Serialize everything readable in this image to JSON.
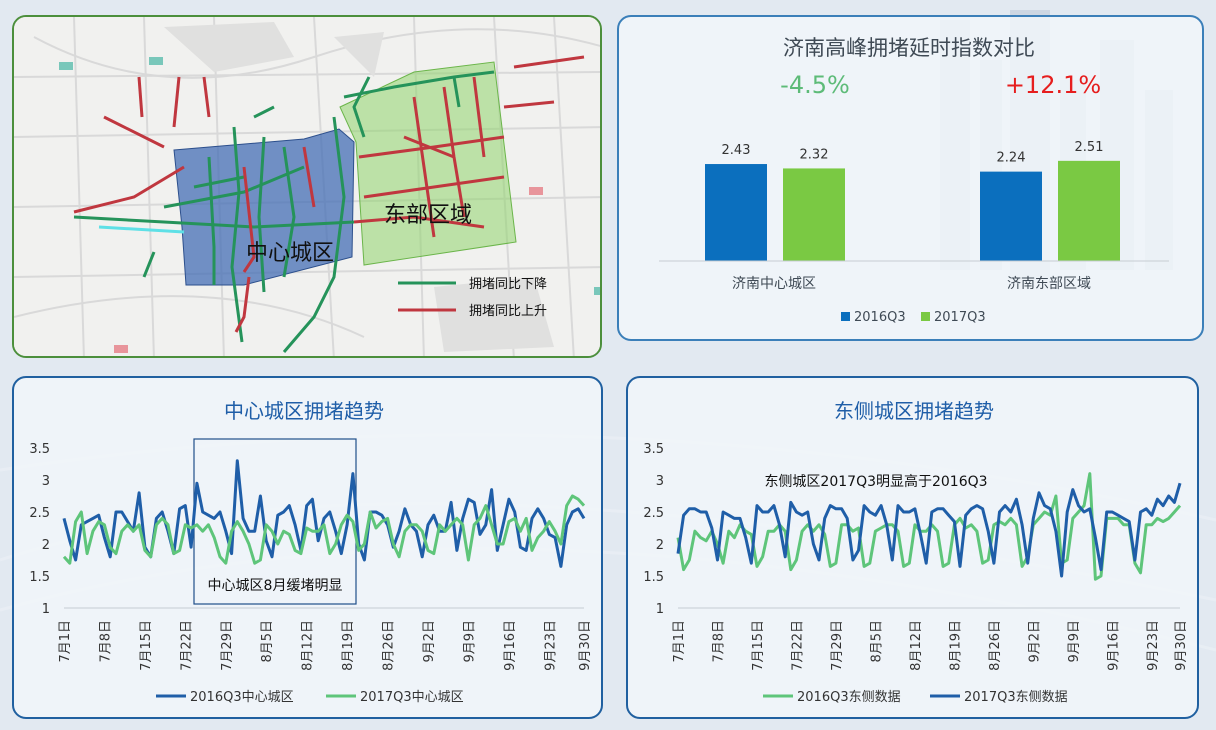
{
  "colors": {
    "blue": "#1f5ea8",
    "green": "#5ec57a",
    "bar_blue": "#0b6fbe",
    "bar_green": "#7ac943",
    "neg": "#5dbb78",
    "pos": "#e61e1e",
    "map_green": "#25935a",
    "map_red": "#c0373f"
  },
  "map": {
    "center_label": "中心城区",
    "east_label": "东部区域",
    "legend_down": "拥堵同比下降",
    "legend_up": "拥堵同比上升"
  },
  "bar_chart": {
    "title": "济南高峰拥堵延时指数对比",
    "groups": [
      {
        "name": "济南中心城区",
        "change": "-4.5%",
        "v2016": 2.43,
        "v2017": 2.32,
        "l2016": "2.43",
        "l2017": "2.32"
      },
      {
        "name": "济南东部区域",
        "change": "+12.1%",
        "v2016": 2.24,
        "v2017": 2.51,
        "l2016": "2.24",
        "l2017": "2.51"
      }
    ],
    "legend": [
      "2016Q3",
      "2017Q3"
    ]
  },
  "trend1": {
    "title": "中心城区拥堵趋势",
    "annotation": "中心城区8月缓堵明显",
    "legend": [
      "2016Q3中心城区",
      "2017Q3中心城区"
    ]
  },
  "trend2": {
    "title": "东侧城区拥堵趋势",
    "annotation": "东侧城区2017Q3明显高于2016Q3",
    "legend": [
      "2016Q3东侧数据",
      "2017Q3东侧数据"
    ]
  },
  "chart_data": [
    {
      "type": "bar",
      "title": "济南高峰拥堵延时指数对比",
      "categories": [
        "济南中心城区",
        "济南东部区域"
      ],
      "series": [
        {
          "name": "2016Q3",
          "values": [
            2.43,
            2.24
          ]
        },
        {
          "name": "2017Q3",
          "values": [
            2.32,
            2.51
          ]
        }
      ],
      "annotations": [
        "-4.5%",
        "+12.1%"
      ],
      "legend_position": "bottom"
    },
    {
      "type": "line",
      "title": "中心城区拥堵趋势",
      "ylim": [
        1,
        3.5
      ],
      "yticks": [
        "1",
        "1.5",
        "2",
        "2.5",
        "3",
        "3.5"
      ],
      "x_ticks": [
        "7月1日",
        "7月8日",
        "7月15日",
        "7月22日",
        "7月29日",
        "8月5日",
        "8月12日",
        "8月19日",
        "8月26日",
        "9月2日",
        "9月9日",
        "9月16日",
        "9月23日",
        "9月30日"
      ],
      "series": [
        {
          "name": "2016Q3中心城区",
          "values": [
            2.4,
            2.05,
            1.75,
            2.3,
            2.35,
            2.4,
            2.45,
            2.1,
            1.8,
            2.5,
            2.5,
            2.35,
            2.2,
            2.8,
            1.95,
            1.8,
            2.4,
            2.5,
            2.2,
            1.85,
            2.55,
            2.6,
            1.95,
            2.95,
            2.5,
            2.45,
            2.4,
            2.5,
            2.2,
            1.85,
            3.3,
            2.4,
            2.2,
            2.2,
            2.75,
            2.05,
            1.8,
            2.45,
            2.5,
            2.6,
            2.3,
            1.9,
            2.6,
            2.7,
            2.05,
            2.4,
            2.5,
            2.2,
            1.85,
            2.3,
            3.1,
            2.0,
            1.75,
            2.5,
            2.5,
            2.45,
            2.3,
            1.95,
            2.2,
            2.55,
            2.3,
            2.2,
            1.8,
            2.3,
            2.45,
            2.2,
            2.2,
            2.65,
            1.9,
            2.4,
            2.7,
            2.65,
            2.15,
            2.3,
            2.85,
            1.9,
            2.3,
            2.7,
            2.5,
            1.95,
            1.9,
            2.4,
            2.55,
            2.4,
            2.15,
            2.1,
            1.65,
            2.3,
            2.5,
            2.55,
            2.4
          ]
        },
        {
          "name": "2017Q3中心城区",
          "values": [
            1.8,
            1.7,
            2.35,
            2.5,
            1.85,
            2.2,
            2.35,
            2.3,
            1.95,
            1.85,
            2.2,
            2.3,
            2.2,
            2.3,
            1.9,
            1.8,
            2.3,
            2.4,
            2.3,
            1.85,
            1.9,
            2.3,
            2.25,
            2.3,
            2.2,
            2.3,
            2.1,
            1.8,
            1.7,
            2.2,
            2.35,
            2.2,
            2.0,
            1.7,
            1.75,
            2.3,
            2.2,
            2.0,
            2.2,
            2.15,
            1.9,
            1.85,
            2.25,
            2.2,
            2.2,
            2.3,
            1.85,
            2.0,
            2.3,
            2.45,
            2.35,
            1.9,
            2.0,
            2.5,
            2.25,
            2.35,
            2.4,
            2.0,
            1.8,
            2.2,
            2.3,
            2.3,
            2.2,
            1.9,
            1.85,
            2.3,
            2.2,
            2.3,
            2.4,
            2.3,
            1.75,
            2.3,
            2.4,
            2.6,
            2.3,
            2.0,
            2.0,
            2.35,
            2.4,
            2.2,
            2.4,
            1.9,
            2.1,
            2.2,
            2.35,
            2.2,
            2.0,
            2.6,
            2.75,
            2.7,
            2.6
          ]
        }
      ]
    },
    {
      "type": "line",
      "title": "东侧城区拥堵趋势",
      "ylim": [
        1,
        3.5
      ],
      "yticks": [
        "1",
        "1.5",
        "2",
        "2.5",
        "3",
        "3.5"
      ],
      "x_ticks": [
        "7月1日",
        "7月8日",
        "7月15日",
        "7月22日",
        "7月29日",
        "8月5日",
        "8月12日",
        "8月19日",
        "8月26日",
        "9月2日",
        "9月9日",
        "9月16日",
        "9月23日",
        "9月30日"
      ],
      "series": [
        {
          "name": "2016Q3东侧数据",
          "values": [
            2.1,
            1.6,
            1.75,
            2.2,
            2.1,
            2.05,
            2.2,
            2.0,
            1.7,
            2.2,
            2.1,
            2.3,
            2.2,
            2.15,
            1.65,
            1.8,
            2.2,
            2.2,
            2.3,
            2.2,
            1.6,
            1.75,
            2.2,
            2.3,
            2.2,
            2.3,
            2.15,
            1.65,
            1.7,
            2.3,
            2.3,
            2.2,
            2.25,
            1.65,
            1.7,
            2.2,
            2.25,
            2.3,
            2.3,
            2.2,
            1.65,
            1.7,
            2.3,
            2.2,
            2.2,
            2.3,
            2.2,
            1.65,
            1.7,
            2.3,
            2.4,
            2.25,
            2.3,
            2.2,
            1.7,
            1.75,
            2.3,
            2.35,
            2.3,
            2.4,
            2.3,
            1.65,
            1.8,
            2.3,
            2.4,
            2.5,
            2.45,
            2.75,
            1.7,
            1.75,
            2.4,
            2.5,
            2.6,
            3.1,
            1.45,
            1.5,
            2.4,
            2.4,
            2.4,
            2.3,
            2.3,
            1.7,
            1.55,
            2.3,
            2.3,
            2.4,
            2.35,
            2.4,
            2.5,
            2.6
          ]
        },
        {
          "name": "2017Q3东侧数据",
          "values": [
            1.85,
            2.45,
            2.55,
            2.55,
            2.5,
            2.5,
            2.25,
            1.75,
            2.5,
            2.45,
            2.4,
            2.4,
            2.1,
            1.7,
            2.6,
            2.5,
            2.5,
            2.6,
            2.3,
            1.8,
            2.65,
            2.5,
            2.45,
            2.5,
            2.0,
            1.75,
            2.4,
            2.6,
            2.55,
            2.55,
            2.4,
            1.75,
            1.9,
            2.6,
            2.5,
            2.45,
            2.6,
            2.3,
            1.75,
            2.6,
            2.5,
            2.5,
            2.55,
            2.15,
            1.7,
            2.5,
            2.55,
            2.55,
            2.45,
            2.35,
            1.65,
            2.45,
            2.55,
            2.6,
            2.55,
            2.2,
            1.7,
            2.5,
            2.6,
            2.5,
            2.7,
            2.3,
            1.7,
            2.4,
            2.8,
            2.6,
            2.55,
            2.2,
            1.5,
            2.5,
            2.85,
            2.6,
            2.5,
            2.55,
            2.1,
            1.6,
            2.5,
            2.5,
            2.45,
            2.4,
            2.35,
            1.75,
            2.5,
            2.55,
            2.45,
            2.7,
            2.6,
            2.75,
            2.65,
            2.95
          ]
        }
      ]
    }
  ]
}
